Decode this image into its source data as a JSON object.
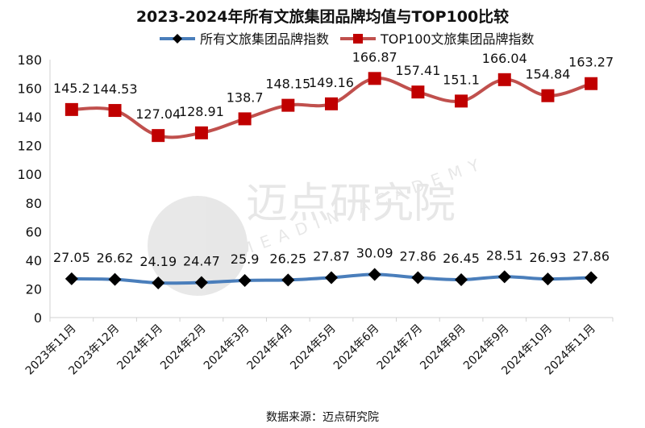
{
  "chart_data": {
    "type": "line",
    "title": "2023-2024年所有文旅集团品牌均值与TOP100比较",
    "xlabel": "",
    "ylabel": "",
    "ylim": [
      0,
      180
    ],
    "yticks": [
      0,
      20,
      40,
      60,
      80,
      100,
      120,
      140,
      160,
      180
    ],
    "grid": false,
    "legend_position": "top-center",
    "categories": [
      "2023年11月",
      "2023年12月",
      "2024年1月",
      "2024年2月",
      "2024年3月",
      "2024年4月",
      "2024年5月",
      "2024年6月",
      "2024年7月",
      "2024年8月",
      "2024年9月",
      "2024年10月",
      "2024年11月"
    ],
    "series": [
      {
        "name": "所有文旅集团品牌指数",
        "color": "#4a7ebb",
        "marker": "diamond",
        "marker_color": "#000000",
        "values": [
          27.05,
          26.62,
          24.19,
          24.47,
          25.9,
          26.25,
          27.87,
          30.09,
          27.86,
          26.45,
          28.51,
          26.93,
          27.86
        ],
        "labels": [
          "27.05",
          "26.62",
          "24.19",
          "24.47",
          "25.9",
          "26.25",
          "27.87",
          "30.09",
          "27.86",
          "26.45",
          "28.51",
          "26.93",
          "27.86"
        ]
      },
      {
        "name": "TOP100文旅集团品牌指数",
        "color": "#c0504d",
        "marker": "square",
        "marker_color": "#c00000",
        "values": [
          145.2,
          144.53,
          127.04,
          128.91,
          138.7,
          148.15,
          149.16,
          166.87,
          157.41,
          151.1,
          166.04,
          154.84,
          163.27
        ],
        "labels": [
          "145.2",
          "144.53",
          "127.04",
          "128.91",
          "138.7",
          "148.15",
          "149.16",
          "166.87",
          "157.41",
          "151.1",
          "166.04",
          "154.84",
          "163.27"
        ]
      }
    ]
  },
  "watermark": {
    "text": "迈点研究院",
    "subtext": "MEADIN ACADEMY"
  },
  "source": "数据来源：迈点研究院"
}
